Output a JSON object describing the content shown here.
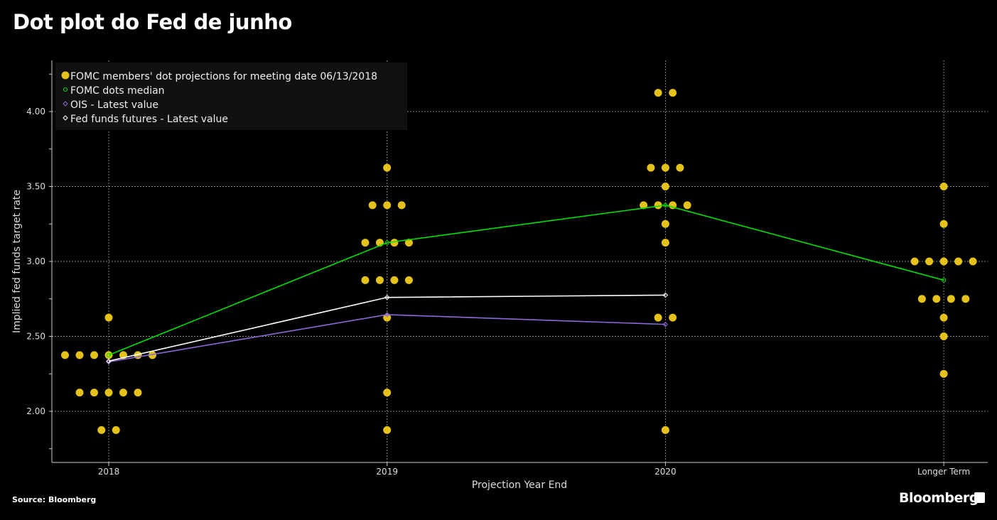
{
  "title": "Dot plot do Fed de junho",
  "source": "Source: Bloomberg",
  "brand": "Bloomberg",
  "colors": {
    "dots": "#e5c21a",
    "median": "#00e000",
    "ois": "#8a6ad8",
    "futures": "#ffffff",
    "grid": "#888888",
    "legend_bg": "#111111"
  },
  "chart_data": {
    "type": "scatter",
    "title": "Dot plot do Fed de junho",
    "xlabel": "Projection Year End",
    "ylabel": "Implied fed funds target rate",
    "categories": [
      "2018",
      "2019",
      "2020",
      "Longer Term"
    ],
    "ylim": [
      1.66,
      4.34
    ],
    "yticks": [
      "2.00",
      "2.50",
      "3.00",
      "3.50",
      "4.00"
    ],
    "grid": true,
    "legend_position": "top-left",
    "legend": [
      "FOMC members' dot projections for meeting date 06/13/2018",
      "FOMC dots median",
      "OIS - Latest value",
      "Fed funds futures - Latest value"
    ],
    "dots": [
      [
        [
          2.625,
          1
        ],
        [
          2.375,
          7
        ],
        [
          2.125,
          5
        ],
        [
          1.875,
          2
        ]
      ],
      [
        [
          3.625,
          1
        ],
        [
          3.375,
          3
        ],
        [
          3.125,
          4
        ],
        [
          2.875,
          4
        ],
        [
          2.625,
          1
        ],
        [
          2.125,
          1
        ],
        [
          1.875,
          1
        ]
      ],
      [
        [
          4.125,
          2
        ],
        [
          3.625,
          3
        ],
        [
          3.5,
          1
        ],
        [
          3.375,
          4
        ],
        [
          3.25,
          1
        ],
        [
          3.125,
          1
        ],
        [
          2.625,
          2
        ],
        [
          1.875,
          1
        ]
      ],
      [
        [
          3.5,
          1
        ],
        [
          3.25,
          1
        ],
        [
          3.0,
          5
        ],
        [
          2.75,
          4
        ],
        [
          2.625,
          1
        ],
        [
          2.5,
          1
        ],
        [
          2.25,
          1
        ]
      ]
    ],
    "series": [
      {
        "name": "FOMC dots median",
        "values": [
          2.375,
          3.125,
          3.375,
          2.875
        ]
      },
      {
        "name": "OIS - Latest value",
        "values": [
          2.33,
          2.645,
          2.58,
          null
        ]
      },
      {
        "name": "Fed funds futures - Latest value",
        "values": [
          2.335,
          2.76,
          2.775,
          null
        ]
      }
    ]
  }
}
